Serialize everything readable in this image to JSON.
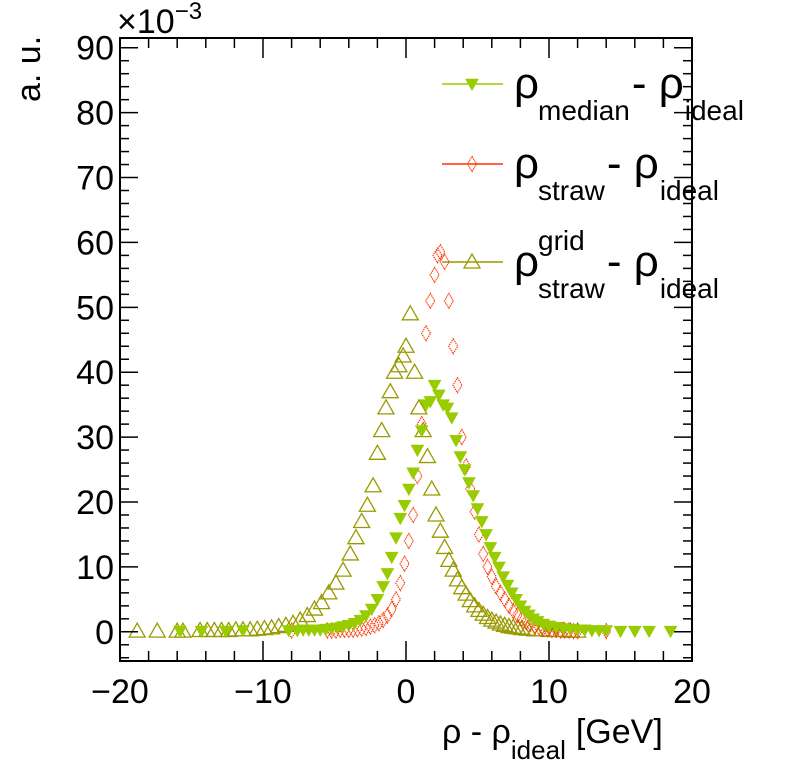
{
  "chart_data": {
    "type": "scatter",
    "title": "",
    "xlabel": {
      "main": "ρ - ρ",
      "sub": "ideal",
      "unit": "[GeV]"
    },
    "ylabel": "a. u.",
    "y_exponent_label": {
      "base": "×10",
      "exp": "−3"
    },
    "xlim": [
      -20,
      20
    ],
    "ylim": [
      -4.5,
      91.5
    ],
    "xticks": [
      -20,
      -10,
      0,
      10,
      20
    ],
    "xtick_labels": [
      "−20",
      "−10",
      "0",
      "10",
      "20"
    ],
    "yticks": [
      0,
      10,
      20,
      30,
      40,
      50,
      60,
      70,
      80,
      90
    ],
    "ytick_labels": [
      "0",
      "10",
      "20",
      "30",
      "40",
      "50",
      "60",
      "70",
      "80",
      "90"
    ],
    "grid": false,
    "legend_position": "top-right",
    "series": [
      {
        "name": "rho_median_minus_rho_ideal",
        "legend": {
          "main": "ρ",
          "sub": "median",
          "mid": " - ρ",
          "sub2": "ideal",
          "sup": ""
        },
        "marker": "triangle-down-filled",
        "color": "#99cc00",
        "x": [
          -15.8,
          -14.3,
          -12.6,
          -11.4,
          -8.2,
          -7.6,
          -7.2,
          -6.8,
          -6.4,
          -6.0,
          -5.6,
          -5.2,
          -4.8,
          -4.4,
          -4.0,
          -3.6,
          -3.2,
          -2.8,
          -2.4,
          -2.0,
          -1.6,
          -1.3,
          -1.0,
          -0.7,
          -0.4,
          -0.1,
          0.2,
          0.5,
          0.8,
          1.1,
          1.4,
          1.7,
          2.0,
          2.3,
          2.6,
          2.9,
          3.2,
          3.5,
          3.8,
          4.1,
          4.4,
          4.7,
          5.0,
          5.3,
          5.6,
          5.9,
          6.2,
          6.5,
          6.8,
          7.1,
          7.4,
          7.7,
          8.0,
          8.3,
          8.6,
          8.9,
          9.2,
          9.6,
          10.0,
          10.5,
          11.0,
          11.5,
          12.0,
          12.5,
          13.0,
          13.5,
          14.0,
          15.0,
          16.0,
          17.0,
          18.5
        ],
        "y": [
          0.1,
          0.1,
          0.1,
          0.2,
          0.2,
          0.2,
          0.3,
          0.3,
          0.3,
          0.3,
          0.4,
          0.5,
          0.6,
          0.8,
          1.0,
          1.3,
          1.8,
          2.5,
          3.5,
          5.0,
          7.0,
          9.0,
          11.5,
          14.5,
          17.5,
          19.5,
          22.0,
          24.5,
          28.0,
          31.0,
          35.0,
          35.5,
          38.0,
          36.5,
          35.0,
          34.5,
          33.0,
          29.5,
          27.0,
          25.0,
          23.0,
          21.0,
          19.0,
          17.0,
          15.0,
          13.0,
          11.5,
          10.0,
          8.5,
          7.2,
          6.0,
          5.0,
          4.0,
          3.2,
          2.6,
          2.0,
          1.6,
          1.2,
          0.9,
          0.7,
          0.5,
          0.4,
          0.3,
          0.3,
          0.2,
          0.2,
          0.2,
          0.1,
          0.1,
          0.1,
          0.1
        ]
      },
      {
        "name": "rho_straw_minus_rho_ideal",
        "legend": {
          "main": "ρ",
          "sub": "straw",
          "mid": " - ρ",
          "sub2": "ideal",
          "sup": ""
        },
        "marker": "diamond-open",
        "color": "#ff3300",
        "x": [
          -8.0,
          -5.5,
          -5.2,
          -4.9,
          -4.6,
          -4.3,
          -4.0,
          -3.7,
          -3.4,
          -3.1,
          -2.8,
          -2.5,
          -2.2,
          -1.9,
          -1.6,
          -1.3,
          -1.0,
          -0.7,
          -0.4,
          -0.1,
          0.2,
          0.5,
          0.8,
          1.1,
          1.4,
          1.7,
          2.0,
          2.2,
          2.4,
          2.7,
          3.0,
          3.3,
          3.6,
          3.9,
          4.2,
          4.5,
          4.8,
          5.1,
          5.4,
          5.7,
          6.0,
          6.3,
          6.6,
          6.9,
          7.2,
          7.5,
          7.8,
          8.1,
          8.4,
          8.7,
          9.0,
          9.3,
          9.6,
          9.9,
          10.2,
          10.5,
          10.8,
          11.1,
          11.4,
          11.7,
          12.0,
          14.0
        ],
        "y": [
          0.2,
          0.2,
          0.2,
          0.2,
          0.3,
          0.3,
          0.3,
          0.3,
          0.4,
          0.5,
          0.6,
          0.8,
          1.0,
          1.3,
          1.8,
          2.5,
          3.5,
          5.0,
          7.5,
          10.5,
          14.0,
          18.0,
          24.0,
          32.0,
          46.0,
          51.0,
          55.0,
          58.0,
          58.5,
          57.0,
          51.0,
          44.0,
          38.0,
          30.0,
          25.5,
          22.0,
          18.5,
          15.0,
          12.0,
          10.0,
          8.5,
          7.0,
          6.0,
          5.0,
          4.0,
          3.2,
          2.6,
          2.0,
          1.5,
          1.2,
          0.9,
          0.7,
          0.5,
          0.4,
          0.3,
          0.3,
          0.2,
          0.2,
          0.2,
          0.1,
          0.1,
          0.1
        ]
      },
      {
        "name": "rho_straw_grid_minus_rho_ideal",
        "legend": {
          "main": "ρ",
          "sub": "straw",
          "mid": " - ρ",
          "sub2": "ideal",
          "sup": "grid"
        },
        "marker": "triangle-up-open",
        "color": "#999900",
        "x": [
          -18.8,
          -17.4,
          -16.0,
          -15.6,
          -14.4,
          -13.9,
          -13.4,
          -12.9,
          -12.4,
          -11.9,
          -11.4,
          -10.9,
          -10.4,
          -9.9,
          -9.4,
          -8.9,
          -8.4,
          -7.9,
          -7.4,
          -6.9,
          -6.4,
          -5.9,
          -5.4,
          -4.9,
          -4.4,
          -3.9,
          -3.5,
          -3.1,
          -2.7,
          -2.3,
          -2.0,
          -1.7,
          -1.4,
          -1.1,
          -0.8,
          -0.5,
          -0.2,
          0.0,
          0.3,
          0.6,
          0.9,
          1.2,
          1.5,
          1.8,
          2.1,
          2.4,
          2.7,
          3.0,
          3.3,
          3.6,
          3.9,
          4.2,
          4.5,
          4.8,
          5.1,
          5.4,
          5.7,
          6.0,
          6.3,
          6.6,
          6.9,
          7.2,
          7.5,
          7.8,
          8.1,
          8.5,
          9.0,
          9.5,
          10.0,
          10.5,
          11.0,
          11.5,
          12.0
        ],
        "y": [
          0.1,
          0.1,
          0.1,
          0.1,
          0.2,
          0.2,
          0.2,
          0.2,
          0.2,
          0.3,
          0.3,
          0.3,
          0.4,
          0.5,
          0.6,
          0.8,
          1.0,
          1.3,
          1.8,
          2.5,
          3.5,
          4.5,
          6.0,
          7.5,
          9.5,
          12.0,
          14.5,
          17.0,
          19.5,
          22.5,
          27.5,
          31.0,
          34.5,
          37.0,
          40.0,
          41.0,
          42.5,
          44.0,
          49.0,
          40.0,
          34.5,
          31.0,
          27.0,
          22.0,
          18.0,
          15.5,
          13.0,
          11.0,
          9.5,
          8.0,
          6.8,
          5.8,
          4.8,
          4.0,
          3.3,
          2.7,
          2.2,
          1.8,
          1.5,
          1.2,
          1.0,
          0.8,
          0.7,
          0.6,
          0.5,
          0.4,
          0.3,
          0.3,
          0.2,
          0.2,
          0.2,
          0.1,
          0.1
        ]
      }
    ]
  }
}
